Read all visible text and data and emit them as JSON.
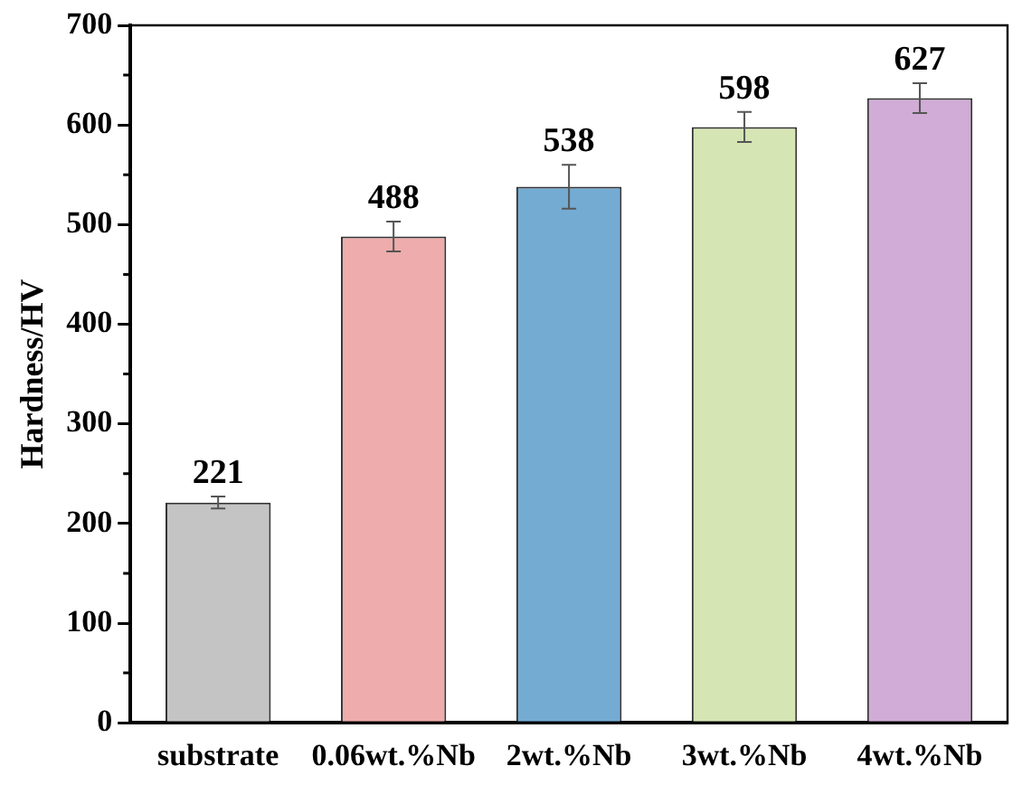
{
  "chart_data": {
    "type": "bar",
    "ylabel": "Hardness/HV",
    "categories": [
      "substrate",
      "0.06wt.%Nb",
      "2wt.%Nb",
      "3wt.%Nb",
      "4wt.%Nb"
    ],
    "values": [
      221,
      488,
      538,
      598,
      627
    ],
    "colors": [
      "#c4c4c4",
      "#eeacac",
      "#74abd3",
      "#d6e5b4",
      "#d0acd6"
    ],
    "errors": [
      6,
      15,
      22,
      15,
      15
    ],
    "data_labels": true,
    "ylim": [
      0,
      700
    ],
    "yticks": [
      0,
      100,
      200,
      300,
      400,
      500,
      600,
      700
    ],
    "grid": false,
    "legend": false
  }
}
